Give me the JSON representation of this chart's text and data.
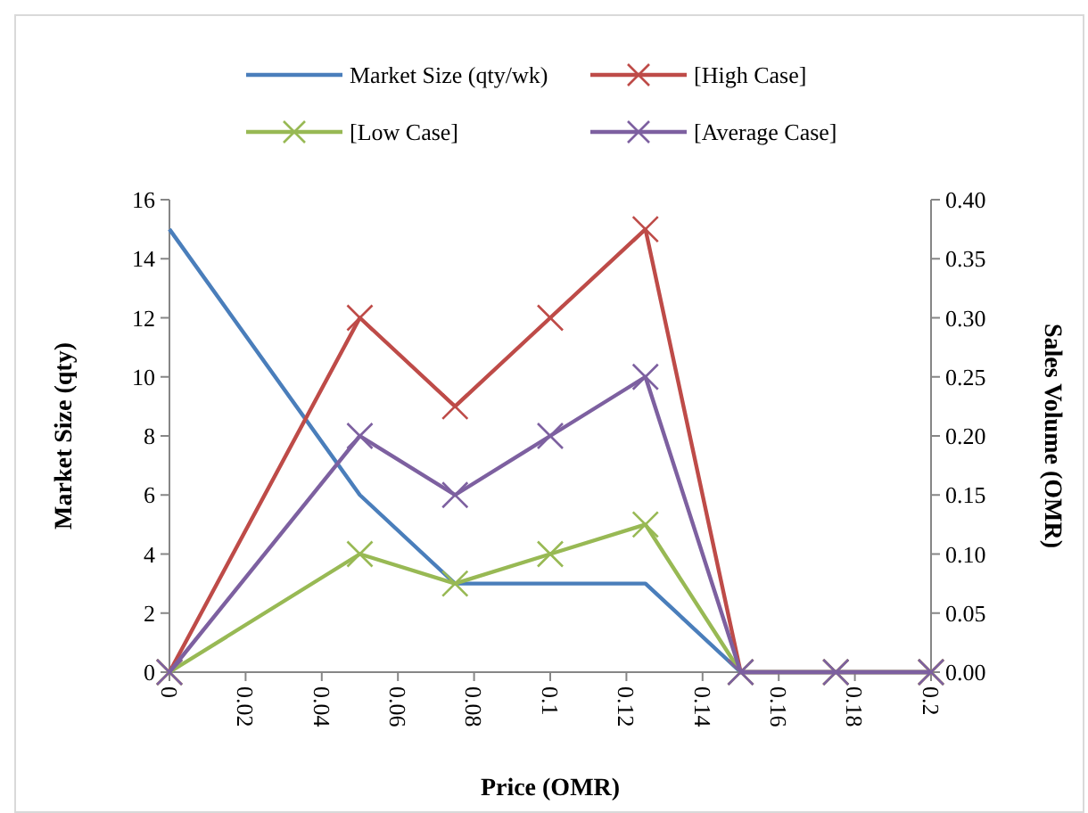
{
  "chart_data": {
    "type": "line",
    "xlabel": "Price (OMR)",
    "ylabel": "Market Size (qty)",
    "y2label": "Sales Volume (OMR)",
    "x": [
      0,
      0.05,
      0.075,
      0.1,
      0.125,
      0.15,
      0.175,
      0.2
    ],
    "series": [
      {
        "name": "Market Size (qty/wk)",
        "color": "#4a7ebb",
        "marker": "none",
        "values": [
          15,
          6,
          3,
          3,
          3,
          0,
          0,
          0
        ]
      },
      {
        "name": "[High Case]",
        "color": "#be4b48",
        "marker": "cross",
        "axis": "y2",
        "values": [
          0,
          0.3,
          0.225,
          0.3,
          0.375,
          0,
          0,
          0
        ]
      },
      {
        "name": "[Low Case]",
        "color": "#98b954",
        "marker": "cross",
        "axis": "y2",
        "values": [
          0,
          0.1,
          0.075,
          0.1,
          0.125,
          0,
          0,
          0
        ]
      },
      {
        "name": "[Average Case]",
        "color": "#7d60a0",
        "marker": "cross",
        "axis": "y2",
        "values": [
          0,
          0.2,
          0.15,
          0.2,
          0.25,
          0,
          0,
          0
        ]
      }
    ],
    "xlim": [
      0,
      0.2
    ],
    "xticks": [
      0,
      0.02,
      0.04,
      0.06,
      0.08,
      0.1,
      0.12,
      0.14,
      0.16,
      0.18,
      0.2
    ],
    "ylim": [
      0,
      16
    ],
    "yticks": [
      0,
      2,
      4,
      6,
      8,
      10,
      12,
      14,
      16
    ],
    "y2lim": [
      0,
      0.4
    ],
    "y2ticks": [
      {
        "value": 0,
        "label": "0.00"
      },
      {
        "value": 0.05,
        "label": "0.05"
      },
      {
        "value": 0.1,
        "label": "0.10"
      },
      {
        "value": 0.15,
        "label": "0.15"
      },
      {
        "value": 0.2,
        "label": "0.20"
      },
      {
        "value": 0.25,
        "label": "0.25"
      },
      {
        "value": 0.3,
        "label": "0.30"
      },
      {
        "value": 0.35,
        "label": "0.35"
      },
      {
        "value": 0.4,
        "label": "0.40"
      }
    ],
    "grid": false,
    "legend": "top"
  }
}
